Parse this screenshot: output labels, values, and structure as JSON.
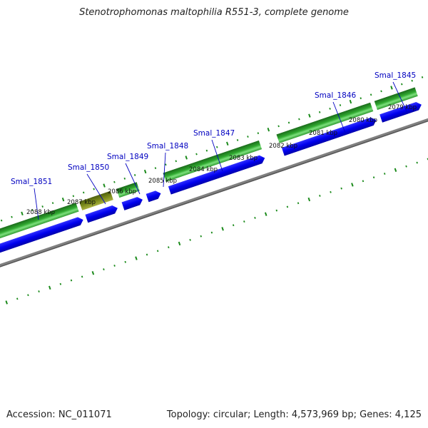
{
  "title": "Stenotrophomonas maltophilia R551-3, complete genome",
  "footer": {
    "accession": "Accession: NC_011071",
    "summary": "Topology: circular; Length: 4,573,969 bp; Genes: 4,125"
  },
  "colors": {
    "gene_dark": "#1f8a1f",
    "gene_light": "#7de07d",
    "gene_selected": "#7a8a1a",
    "cds": "#0000ee",
    "backbone": "#808080",
    "ticks": "#1a8a1a",
    "labels": "#0000c0"
  },
  "tick_labels": [
    "2088 kbp",
    "2087 kbp",
    "2086 kbp",
    "2085 kbp",
    "2084 kbp",
    "2083 kbp",
    "2082 kbp",
    "2081 kbp",
    "2080 kbp",
    "2079 kbp"
  ],
  "genes": [
    {
      "label": "Smal_1851"
    },
    {
      "label": "Smal_1850"
    },
    {
      "label": "Smal_1849"
    },
    {
      "label": "Smal_1848"
    },
    {
      "label": "Smal_1847"
    },
    {
      "label": "Smal_1846"
    },
    {
      "label": "Smal_1845"
    }
  ]
}
